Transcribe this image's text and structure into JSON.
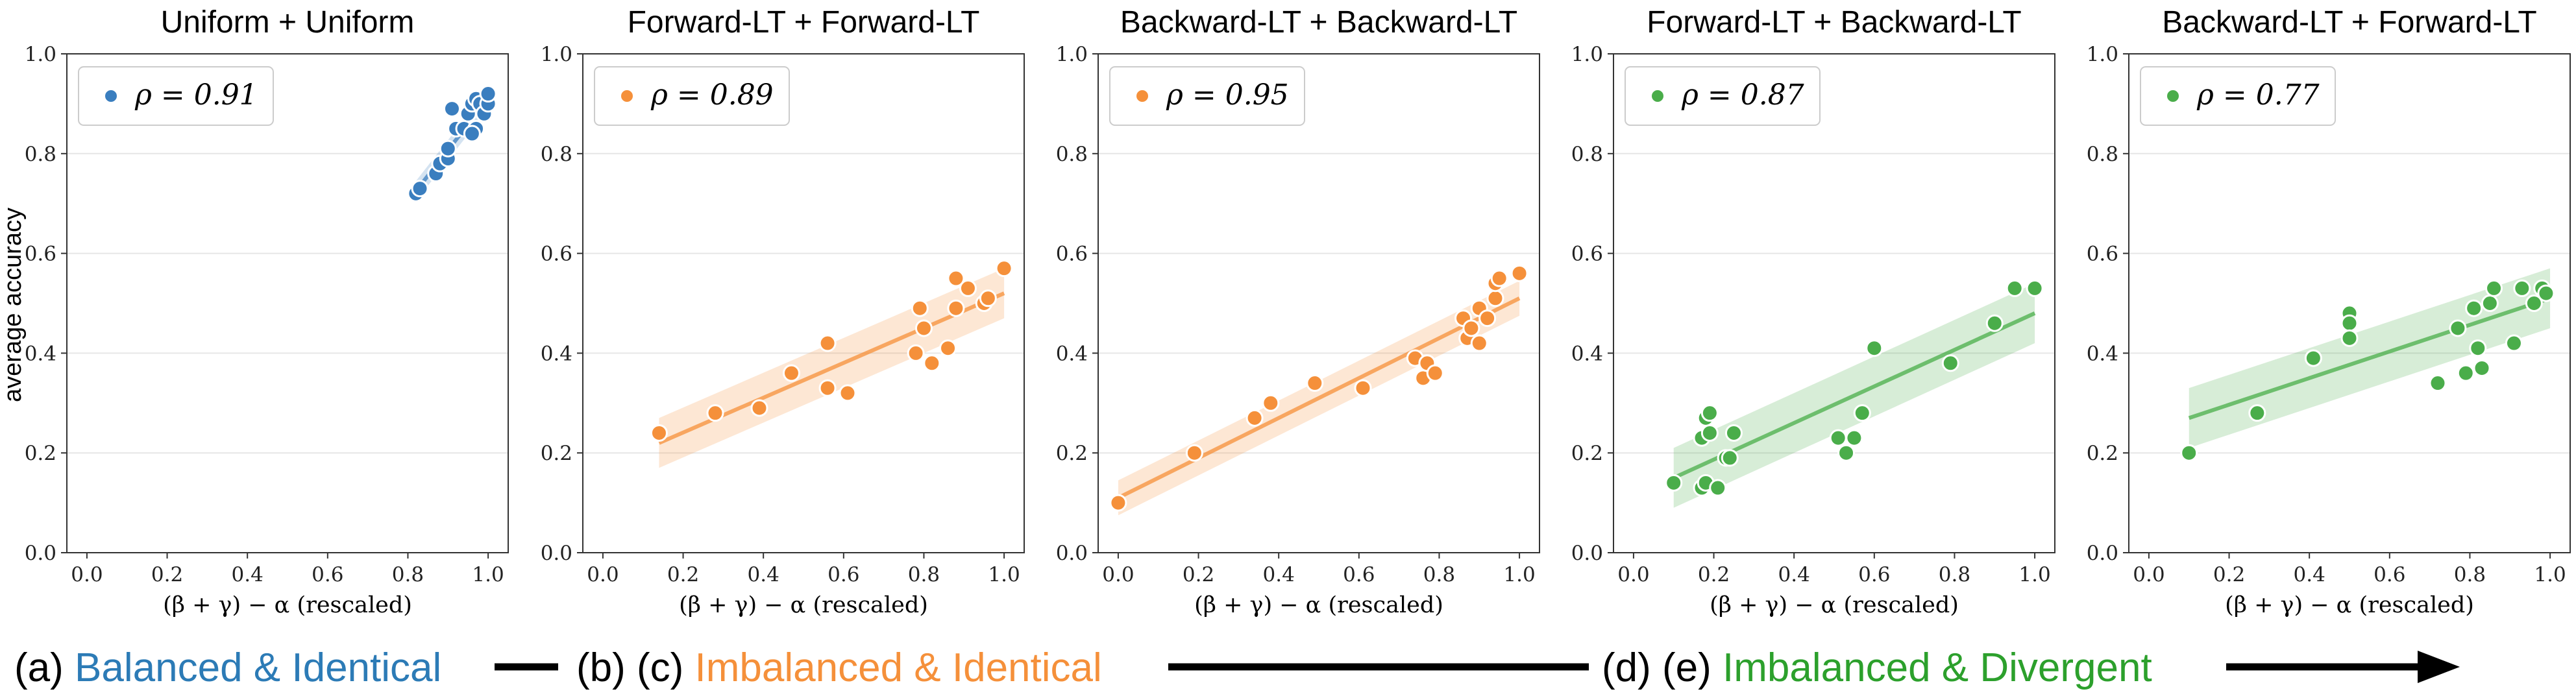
{
  "colors": {
    "blue": "#3a7ebf",
    "orange": "#f5903a",
    "green": "#4aad4a",
    "grid": "#e6e6e6"
  },
  "y_axis_label": "average accuracy",
  "chart_data": [
    {
      "type": "scatter",
      "title": "Uniform + Uniform",
      "xlabel": "(β + γ) − α (rescaled)",
      "ylabel": "average accuracy",
      "xlim": [
        -0.05,
        1.05
      ],
      "ylim": [
        0.0,
        1.0
      ],
      "xticks": [
        "0.0",
        "0.2",
        "0.4",
        "0.6",
        "0.8",
        "1.0"
      ],
      "yticks": [
        "0.0",
        "0.2",
        "0.4",
        "0.6",
        "0.8",
        "1.0"
      ],
      "grid": "horizontal",
      "legend": "ρ = 0.91",
      "legend_position": "top-left",
      "color": "blue",
      "trend": {
        "x0": 0.82,
        "y0": 0.725,
        "x1": 1.0,
        "y1": 0.91,
        "band": 0.02
      },
      "points": [
        [
          0.82,
          0.72
        ],
        [
          0.83,
          0.73
        ],
        [
          0.87,
          0.76
        ],
        [
          0.88,
          0.78
        ],
        [
          0.9,
          0.79
        ],
        [
          0.9,
          0.81
        ],
        [
          0.91,
          0.89
        ],
        [
          0.92,
          0.85
        ],
        [
          0.94,
          0.85
        ],
        [
          0.95,
          0.88
        ],
        [
          0.96,
          0.9
        ],
        [
          0.97,
          0.91
        ],
        [
          0.97,
          0.85
        ],
        [
          0.98,
          0.9
        ],
        [
          0.99,
          0.88
        ],
        [
          1.0,
          0.9
        ],
        [
          1.0,
          0.92
        ],
        [
          0.96,
          0.84
        ]
      ]
    },
    {
      "type": "scatter",
      "title": "Forward-LT + Forward-LT",
      "xlabel": "(β + γ) − α (rescaled)",
      "xlim": [
        -0.05,
        1.05
      ],
      "ylim": [
        0.0,
        1.0
      ],
      "xticks": [
        "0.0",
        "0.2",
        "0.4",
        "0.6",
        "0.8",
        "1.0"
      ],
      "yticks": [
        "0.0",
        "0.2",
        "0.4",
        "0.6",
        "0.8",
        "1.0"
      ],
      "grid": "horizontal",
      "legend": "ρ = 0.89",
      "legend_position": "top-left",
      "color": "orange",
      "trend": {
        "x0": 0.14,
        "y0": 0.22,
        "x1": 1.0,
        "y1": 0.52,
        "band": 0.05
      },
      "points": [
        [
          0.14,
          0.24
        ],
        [
          0.28,
          0.28
        ],
        [
          0.39,
          0.29
        ],
        [
          0.47,
          0.36
        ],
        [
          0.56,
          0.42
        ],
        [
          0.56,
          0.33
        ],
        [
          0.61,
          0.32
        ],
        [
          0.78,
          0.4
        ],
        [
          0.79,
          0.49
        ],
        [
          0.8,
          0.45
        ],
        [
          0.82,
          0.38
        ],
        [
          0.86,
          0.41
        ],
        [
          0.88,
          0.55
        ],
        [
          0.88,
          0.49
        ],
        [
          0.91,
          0.53
        ],
        [
          0.95,
          0.5
        ],
        [
          0.96,
          0.51
        ],
        [
          1.0,
          0.57
        ]
      ]
    },
    {
      "type": "scatter",
      "title": "Backward-LT + Backward-LT",
      "xlabel": "(β + γ) − α (rescaled)",
      "xlim": [
        -0.05,
        1.05
      ],
      "ylim": [
        0.0,
        1.0
      ],
      "xticks": [
        "0.0",
        "0.2",
        "0.4",
        "0.6",
        "0.8",
        "1.0"
      ],
      "yticks": [
        "0.0",
        "0.2",
        "0.4",
        "0.6",
        "0.8",
        "1.0"
      ],
      "grid": "horizontal",
      "legend": "ρ = 0.95",
      "legend_position": "top-left",
      "color": "orange",
      "trend": {
        "x0": 0.0,
        "y0": 0.11,
        "x1": 1.0,
        "y1": 0.51,
        "band": 0.035
      },
      "points": [
        [
          0.0,
          0.1
        ],
        [
          0.19,
          0.2
        ],
        [
          0.34,
          0.27
        ],
        [
          0.38,
          0.3
        ],
        [
          0.49,
          0.34
        ],
        [
          0.61,
          0.33
        ],
        [
          0.74,
          0.39
        ],
        [
          0.76,
          0.35
        ],
        [
          0.77,
          0.38
        ],
        [
          0.79,
          0.36
        ],
        [
          0.86,
          0.47
        ],
        [
          0.87,
          0.43
        ],
        [
          0.88,
          0.45
        ],
        [
          0.9,
          0.49
        ],
        [
          0.9,
          0.42
        ],
        [
          0.92,
          0.47
        ],
        [
          0.94,
          0.51
        ],
        [
          0.94,
          0.54
        ],
        [
          0.95,
          0.55
        ],
        [
          1.0,
          0.56
        ]
      ]
    },
    {
      "type": "scatter",
      "title": "Forward-LT + Backward-LT",
      "xlabel": "(β + γ) − α (rescaled)",
      "xlim": [
        -0.05,
        1.05
      ],
      "ylim": [
        0.0,
        1.0
      ],
      "xticks": [
        "0.0",
        "0.2",
        "0.4",
        "0.6",
        "0.8",
        "1.0"
      ],
      "yticks": [
        "0.0",
        "0.2",
        "0.4",
        "0.6",
        "0.8",
        "1.0"
      ],
      "grid": "horizontal",
      "legend": "ρ = 0.87",
      "legend_position": "top-left",
      "color": "green",
      "trend": {
        "x0": 0.1,
        "y0": 0.15,
        "x1": 1.0,
        "y1": 0.48,
        "band": 0.06
      },
      "points": [
        [
          0.1,
          0.14
        ],
        [
          0.17,
          0.13
        ],
        [
          0.17,
          0.23
        ],
        [
          0.18,
          0.27
        ],
        [
          0.18,
          0.14
        ],
        [
          0.19,
          0.24
        ],
        [
          0.19,
          0.28
        ],
        [
          0.21,
          0.13
        ],
        [
          0.23,
          0.19
        ],
        [
          0.24,
          0.19
        ],
        [
          0.25,
          0.24
        ],
        [
          0.51,
          0.23
        ],
        [
          0.53,
          0.2
        ],
        [
          0.55,
          0.23
        ],
        [
          0.57,
          0.28
        ],
        [
          0.6,
          0.41
        ],
        [
          0.79,
          0.38
        ],
        [
          0.9,
          0.46
        ],
        [
          0.95,
          0.53
        ],
        [
          1.0,
          0.53
        ]
      ]
    },
    {
      "type": "scatter",
      "title": "Backward-LT + Forward-LT",
      "xlabel": "(β + γ) − α (rescaled)",
      "xlim": [
        -0.05,
        1.05
      ],
      "ylim": [
        0.0,
        1.0
      ],
      "xticks": [
        "0.0",
        "0.2",
        "0.4",
        "0.6",
        "0.8",
        "1.0"
      ],
      "yticks": [
        "0.0",
        "0.2",
        "0.4",
        "0.6",
        "0.8",
        "1.0"
      ],
      "grid": "horizontal",
      "legend": "ρ = 0.77",
      "legend_position": "top-left",
      "color": "green",
      "trend": {
        "x0": 0.1,
        "y0": 0.27,
        "x1": 1.0,
        "y1": 0.51,
        "band": 0.06
      },
      "points": [
        [
          0.1,
          0.2
        ],
        [
          0.27,
          0.28
        ],
        [
          0.41,
          0.39
        ],
        [
          0.5,
          0.48
        ],
        [
          0.5,
          0.46
        ],
        [
          0.5,
          0.43
        ],
        [
          0.72,
          0.34
        ],
        [
          0.77,
          0.45
        ],
        [
          0.79,
          0.36
        ],
        [
          0.81,
          0.49
        ],
        [
          0.82,
          0.41
        ],
        [
          0.83,
          0.37
        ],
        [
          0.85,
          0.5
        ],
        [
          0.86,
          0.53
        ],
        [
          0.91,
          0.42
        ],
        [
          0.93,
          0.53
        ],
        [
          0.96,
          0.5
        ],
        [
          0.98,
          0.53
        ],
        [
          0.99,
          0.52
        ]
      ]
    }
  ],
  "captions": {
    "a_prefix": "(a)",
    "a_text": "Balanced & Identical",
    "bc_prefix": "(b) (c)",
    "bc_text": "Imbalanced & Identical",
    "de_prefix": "(d) (e)",
    "de_text": "Imbalanced & Divergent"
  }
}
